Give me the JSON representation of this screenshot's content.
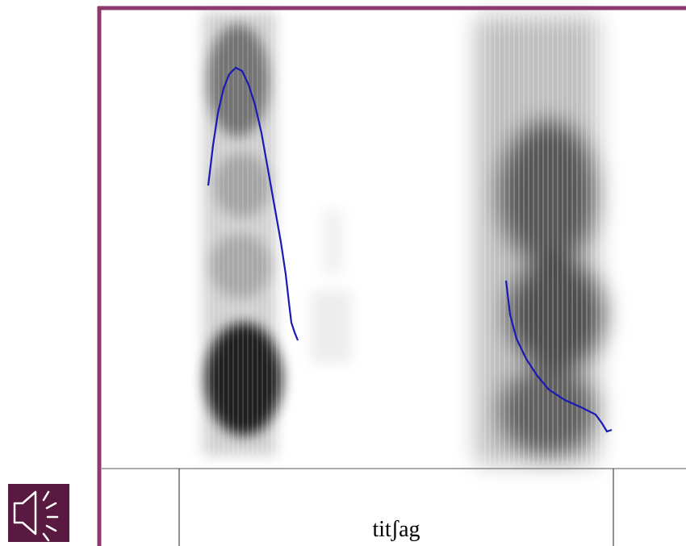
{
  "annotation": {
    "label": "titʃag"
  }
}
